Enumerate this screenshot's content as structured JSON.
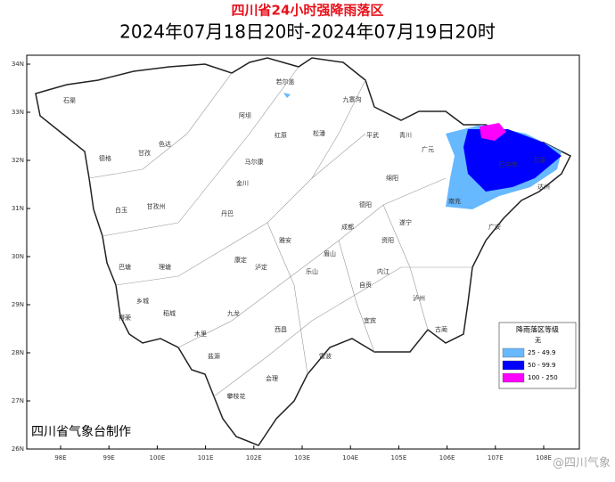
{
  "header": {
    "title": "四川省24小时强降雨落区",
    "subtitle": "2024年07月18日20时-2024年07月19日20时"
  },
  "axes": {
    "lat_ticks": [
      "34N",
      "33N",
      "32N",
      "31N",
      "30N",
      "29N",
      "28N",
      "27N",
      "26N"
    ],
    "lon_ticks": [
      "98E",
      "99E",
      "100E",
      "101E",
      "102E",
      "103E",
      "104E",
      "105E",
      "106E",
      "107E",
      "108E"
    ]
  },
  "legend": {
    "title": "降雨落区等级",
    "items": [
      {
        "label": "无",
        "color": "#ffffff"
      },
      {
        "label": "25 - 49.9",
        "color": "#66b8ff"
      },
      {
        "label": "50 - 99.9",
        "color": "#0000ff"
      },
      {
        "label": "100 - 250",
        "color": "#ff00ff"
      }
    ]
  },
  "credit": "四川省气象台制作",
  "watermark": "@四川气象",
  "places": [
    "石渠",
    "色达",
    "德格",
    "甘孜",
    "白玉",
    "甘孜州",
    "巴塘",
    "理塘",
    "乡城",
    "得荣",
    "稻城",
    "木里",
    "九龙",
    "康定",
    "泸定",
    "丹巴",
    "金川",
    "马尔康",
    "若尔盖",
    "九寨沟",
    "阿坝",
    "红原",
    "松潘",
    "平武",
    "青川",
    "巴中市",
    "万源",
    "南充",
    "成都",
    "绵阳",
    "德阳",
    "遂宁",
    "内江",
    "自贡",
    "宜宾",
    "泸州",
    "乐山",
    "眉山",
    "雅安",
    "西昌",
    "攀枝花",
    "会理",
    "盐源",
    "达州",
    "广安",
    "资阳",
    "广元",
    "雷波",
    "古蔺"
  ]
}
